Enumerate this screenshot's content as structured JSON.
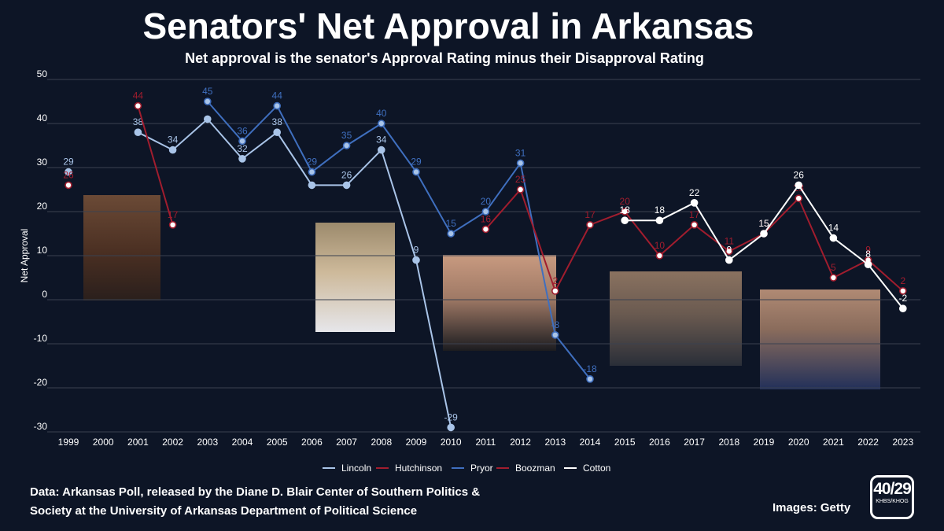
{
  "title": "Senators' Net Approval in Arkansas",
  "subtitle": "Net approval is the senator's Approval Rating minus their Disapproval Rating",
  "source_note": [
    "Data: Arkansas Poll, released by the Diane D. Blair Center of Southern Politics &",
    "Society at the University of Arkansas Department of Political Science"
  ],
  "images_credit": "Images: Getty",
  "logo": {
    "number": "40/29",
    "calls": "KHBS/KHOG"
  },
  "photos": [
    {
      "name": "senator-photo-hutchinson",
      "color": "#5a3a2a"
    },
    {
      "name": "senator-photo-lincoln",
      "color": "#8a7c6a"
    },
    {
      "name": "senator-photo-pryor",
      "color": "#3a3226"
    },
    {
      "name": "senator-photo-boozman",
      "color": "#4a4038"
    },
    {
      "name": "senator-photo-cotton",
      "color": "#2c3246"
    }
  ],
  "chart_data": {
    "type": "line",
    "title": "Senators' Net Approval in Arkansas",
    "subtitle": "Net approval is the senator's Approval Rating minus their Disapproval Rating",
    "xlabel": "",
    "ylabel": "Net Approval",
    "ylim": [
      -30,
      50
    ],
    "yticks": [
      -30,
      -20,
      -10,
      0,
      10,
      20,
      30,
      40,
      50
    ],
    "grid": true,
    "legend": "bottom",
    "x": [
      "1999",
      "2000",
      "2001",
      "2002",
      "2003",
      "2004",
      "2005",
      "2006",
      "2007",
      "2008",
      "2009",
      "2010",
      "2011",
      "2012",
      "2013",
      "2014",
      "2015",
      "2016",
      "2017",
      "2018",
      "2019",
      "2020",
      "2021",
      "2022",
      "2023"
    ],
    "series": [
      {
        "name": "Lincoln",
        "color": "#a9c4e8",
        "values": [
          29,
          null,
          38,
          34,
          41,
          32,
          38,
          26,
          26,
          34,
          9,
          -29,
          null,
          null,
          null,
          null,
          null,
          null,
          null,
          null,
          null,
          null,
          null,
          null,
          null
        ],
        "labels": [
          29,
          null,
          38,
          34,
          null,
          32,
          38,
          null,
          26,
          34,
          9,
          -29,
          null,
          null,
          null,
          null,
          null,
          null,
          null,
          null,
          null,
          null,
          null,
          null,
          null
        ]
      },
      {
        "name": "Hutchinson",
        "color": "#a11d2e",
        "values": [
          26,
          null,
          44,
          17,
          null,
          null,
          null,
          null,
          null,
          null,
          null,
          null,
          null,
          null,
          null,
          null,
          null,
          null,
          null,
          null,
          null,
          null,
          null,
          null,
          null
        ],
        "labels": [
          26,
          null,
          44,
          17,
          null,
          null,
          null,
          null,
          null,
          null,
          null,
          null,
          null,
          null,
          null,
          null,
          null,
          null,
          null,
          null,
          null,
          null,
          null,
          null,
          null
        ]
      },
      {
        "name": "Pryor",
        "color": "#3f6fbf",
        "values": [
          null,
          null,
          null,
          null,
          45,
          36,
          44,
          29,
          35,
          40,
          29,
          15,
          20,
          31,
          -8,
          -18,
          null,
          null,
          null,
          null,
          null,
          null,
          null,
          null,
          null
        ],
        "labels": [
          null,
          null,
          null,
          null,
          45,
          36,
          44,
          29,
          35,
          40,
          29,
          15,
          20,
          31,
          -8,
          -18,
          null,
          null,
          null,
          null,
          null,
          null,
          null,
          null,
          null
        ]
      },
      {
        "name": "Boozman",
        "color": "#a11d2e",
        "values": [
          null,
          null,
          null,
          null,
          null,
          null,
          null,
          null,
          null,
          null,
          null,
          null,
          16,
          25,
          2,
          17,
          20,
          10,
          17,
          11,
          15,
          23,
          5,
          9,
          2
        ],
        "labels": [
          null,
          null,
          null,
          null,
          null,
          null,
          null,
          null,
          null,
          null,
          null,
          null,
          16,
          25,
          2,
          17,
          20,
          10,
          17,
          11,
          15,
          23,
          5,
          9,
          2
        ]
      },
      {
        "name": "Cotton",
        "color": "#ffffff",
        "values": [
          null,
          null,
          null,
          null,
          null,
          null,
          null,
          null,
          null,
          null,
          null,
          null,
          null,
          null,
          null,
          null,
          18,
          18,
          22,
          9,
          15,
          26,
          14,
          8,
          -2
        ],
        "labels": [
          null,
          null,
          null,
          null,
          null,
          null,
          null,
          null,
          null,
          null,
          null,
          null,
          null,
          null,
          null,
          null,
          18,
          18,
          22,
          9,
          15,
          26,
          14,
          8,
          -2
        ]
      }
    ]
  }
}
